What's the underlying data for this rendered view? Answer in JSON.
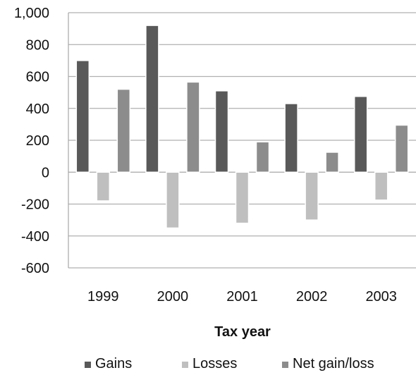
{
  "chart_data": {
    "type": "bar",
    "title": "",
    "xlabel": "Tax year",
    "ylabel": "",
    "categories": [
      "1999",
      "2000",
      "2001",
      "2002",
      "2003"
    ],
    "ylim": [
      -600,
      1000
    ],
    "yticks": [
      -600,
      -400,
      -200,
      0,
      200,
      400,
      600,
      800,
      1000
    ],
    "ytick_labels": [
      "-600",
      "-400",
      "-200",
      "0",
      "200",
      "400",
      "600",
      "800",
      "1,000"
    ],
    "grid": "horizontal",
    "legend_position": "bottom",
    "series": [
      {
        "name": "Gains",
        "color": "#595959",
        "values": [
          700,
          920,
          510,
          430,
          475
        ]
      },
      {
        "name": "Losses",
        "color": "#bfbfbf",
        "values": [
          -180,
          -350,
          -320,
          -300,
          -175
        ]
      },
      {
        "name": "Net gain/loss",
        "color": "#8c8c8c",
        "values": [
          520,
          565,
          190,
          125,
          295
        ]
      }
    ]
  }
}
